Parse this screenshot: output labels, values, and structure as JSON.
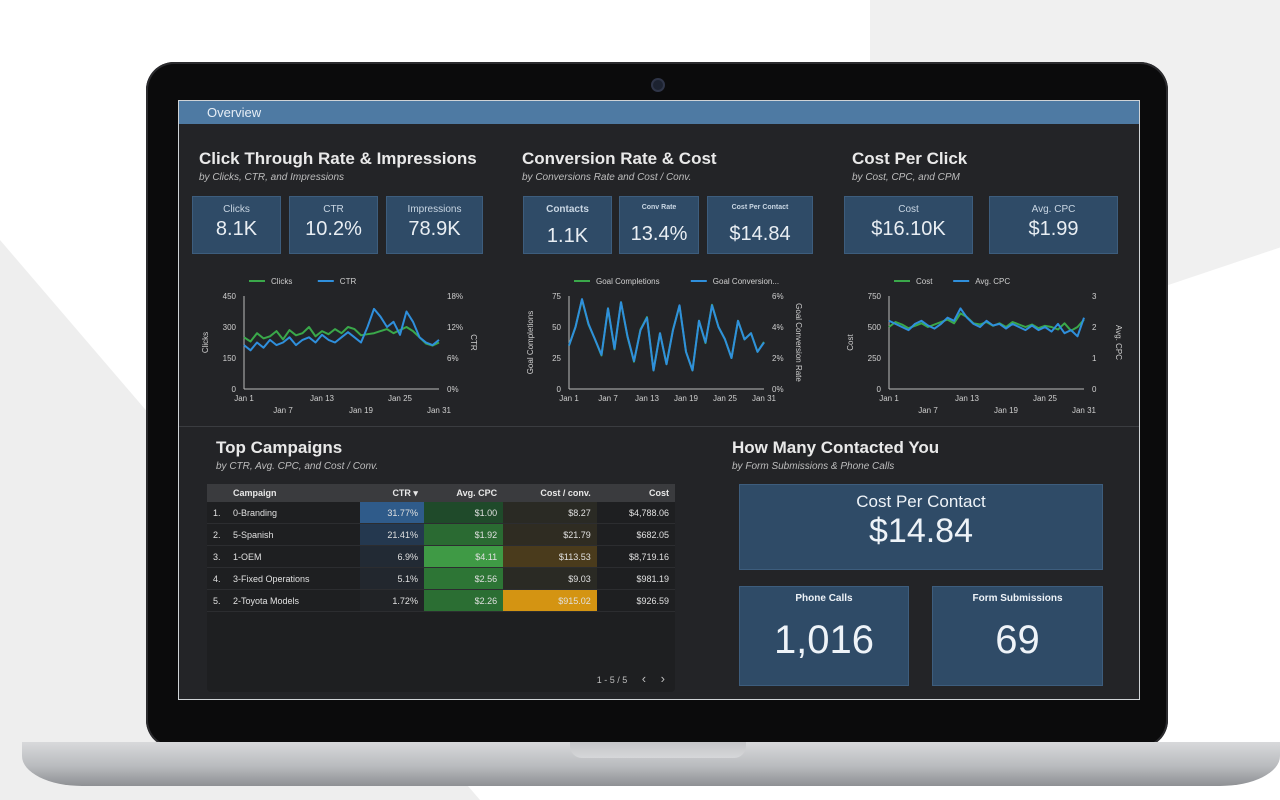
{
  "overview_title": "Overview",
  "sections": {
    "ctr": {
      "title": "Click Through Rate & Impressions",
      "subtitle": "by Clicks, CTR, and Impressions"
    },
    "conv": {
      "title": "Conversion Rate & Cost",
      "subtitle": "by Conversions Rate and Cost / Conv."
    },
    "cpc": {
      "title": "Cost Per Click",
      "subtitle": "by Cost, CPC, and CPM"
    },
    "top": {
      "title": "Top Campaigns",
      "subtitle": "by CTR, Avg. CPC, and Cost / Conv."
    },
    "contacted": {
      "title": "How Many Contacted You",
      "subtitle": "by Form Submissions & Phone Calls"
    }
  },
  "kpis": {
    "clicks": {
      "label": "Clicks",
      "value": "8.1K"
    },
    "ctr": {
      "label": "CTR",
      "value": "10.2%"
    },
    "impressions": {
      "label": "Impressions",
      "value": "78.9K"
    },
    "contacts": {
      "label": "Contacts",
      "value": "1.1K"
    },
    "conv_rate": {
      "label": "Conv Rate",
      "value": "13.4%"
    },
    "cost_per_contact": {
      "label": "Cost Per Contact",
      "value": "$14.84"
    },
    "cost": {
      "label": "Cost",
      "value": "$16.10K"
    },
    "avg_cpc": {
      "label": "Avg. CPC",
      "value": "$1.99"
    }
  },
  "chart_data": [
    {
      "type": "line",
      "legend": [
        "Clicks",
        "CTR"
      ],
      "colors": [
        "#3aa84a",
        "#2f8fdc"
      ],
      "x_ticks": [
        "Jan 1",
        "Jan 7",
        "Jan 13",
        "Jan 19",
        "Jan 25",
        "Jan 31"
      ],
      "ylabel": "Clicks",
      "y2label": "CTR",
      "y_ticks": [
        "450",
        "300",
        "150",
        "0"
      ],
      "ylim": [
        0,
        450
      ],
      "y2_ticks": [
        "18%",
        "12%",
        "6%",
        "0%"
      ],
      "y2lim": [
        0,
        18
      ],
      "series": [
        {
          "name": "Clicks",
          "values": [
            250,
            230,
            270,
            245,
            255,
            280,
            240,
            285,
            260,
            270,
            300,
            255,
            280,
            265,
            290,
            270,
            300,
            290,
            260,
            265,
            270,
            280,
            290,
            270,
            285,
            300,
            280,
            250,
            220,
            210,
            225
          ]
        },
        {
          "name": "CTR",
          "values": [
            8.5,
            7.5,
            9,
            8,
            9.5,
            8.5,
            9,
            10,
            8.5,
            9.5,
            10,
            9,
            10.5,
            9.5,
            9,
            10,
            11,
            10,
            9,
            12,
            15.5,
            14,
            12,
            13,
            10.5,
            15,
            13,
            10,
            9,
            8.5,
            9.5
          ]
        }
      ]
    },
    {
      "type": "line",
      "legend": [
        "Goal Completions",
        "Goal Conversion..."
      ],
      "colors": [
        "#3aa84a",
        "#2f8fdc"
      ],
      "x_ticks": [
        "Jan 1",
        "Jan 7",
        "Jan 13",
        "Jan 19",
        "Jan 25",
        "Jan 31"
      ],
      "ylabel": "Goal Completions",
      "y2label": "Goal Conversion Rate",
      "y_ticks": [
        "75",
        "50",
        "25",
        "0"
      ],
      "ylim": [
        0,
        75
      ],
      "y2_ticks": [
        "6%",
        "4%",
        "2%",
        "0%"
      ],
      "y2lim": [
        0,
        6
      ],
      "series": [
        {
          "name": "Goal Completions",
          "values": [
            35,
            50,
            72,
            52,
            40,
            27,
            65,
            32,
            70,
            42,
            22,
            48,
            58,
            15,
            45,
            20,
            48,
            67,
            30,
            15,
            55,
            37,
            68,
            50,
            40,
            25,
            55,
            40,
            45,
            30,
            38
          ]
        },
        {
          "name": "Goal Conversion...",
          "values": [
            2.8,
            4,
            5.8,
            4.2,
            3.2,
            2.2,
            5.2,
            2.6,
            5.6,
            3.4,
            1.8,
            3.8,
            4.6,
            1.2,
            3.6,
            1.6,
            3.8,
            5.4,
            2.4,
            1.2,
            4.4,
            3,
            5.4,
            4,
            3.2,
            2,
            4.4,
            3.2,
            3.6,
            2.4,
            3
          ]
        }
      ]
    },
    {
      "type": "line",
      "legend": [
        "Cost",
        "Avg. CPC"
      ],
      "colors": [
        "#3aa84a",
        "#2f8fdc"
      ],
      "x_ticks": [
        "Jan 1",
        "Jan 7",
        "Jan 13",
        "Jan 19",
        "Jan 25",
        "Jan 31"
      ],
      "ylabel": "Cost",
      "y2label": "Avg. CPC",
      "y_ticks": [
        "750",
        "500",
        "250",
        "0"
      ],
      "ylim": [
        0,
        750
      ],
      "y2_ticks": [
        "3",
        "2",
        "1",
        "0"
      ],
      "y2lim": [
        0,
        3
      ],
      "series": [
        {
          "name": "Cost",
          "values": [
            500,
            540,
            520,
            490,
            510,
            530,
            500,
            520,
            540,
            560,
            530,
            610,
            580,
            530,
            520,
            540,
            510,
            530,
            500,
            540,
            520,
            500,
            520,
            490,
            510,
            500,
            480,
            530,
            470,
            500,
            560
          ]
        },
        {
          "name": "Avg. CPC",
          "values": [
            2.2,
            2.1,
            2,
            1.9,
            2.1,
            2.2,
            2.05,
            1.95,
            2.1,
            2.3,
            2.2,
            2.6,
            2.3,
            2.1,
            2,
            2.2,
            2.05,
            2.1,
            1.95,
            2.1,
            2,
            1.9,
            2.05,
            1.9,
            2,
            1.85,
            2.1,
            1.8,
            1.9,
            1.7,
            2.3
          ]
        }
      ]
    }
  ],
  "campaigns": {
    "headers": [
      "Campaign",
      "CTR ▾",
      "Avg. CPC",
      "Cost / conv.",
      "Cost"
    ],
    "rows": [
      {
        "idx": "1.",
        "name": "0-Branding",
        "ctr": "31.77%",
        "cpc": "$1.00",
        "cost_conv": "$8.27",
        "cost": "$4,788.06",
        "ctr_bg": "#2f5b8a",
        "cpc_bg": "#1f4a2a",
        "cc_bg": "#2a2a24"
      },
      {
        "idx": "2.",
        "name": "5-Spanish",
        "ctr": "21.41%",
        "cpc": "$1.92",
        "cost_conv": "$21.79",
        "cost": "$682.05",
        "ctr_bg": "#24384f",
        "cpc_bg": "#2a6a32",
        "cc_bg": "#2f2c22"
      },
      {
        "idx": "3.",
        "name": "1-OEM",
        "ctr": "6.9%",
        "cpc": "$4.11",
        "cost_conv": "$113.53",
        "cost": "$8,719.16",
        "ctr_bg": "#222a34",
        "cpc_bg": "#3f9a45",
        "cc_bg": "#4a3b1c"
      },
      {
        "idx": "4.",
        "name": "3-Fixed Operations",
        "ctr": "5.1%",
        "cpc": "$2.56",
        "cost_conv": "$9.03",
        "cost": "$981.19",
        "ctr_bg": "#22272e",
        "cpc_bg": "#2d7535",
        "cc_bg": "#2a2a24"
      },
      {
        "idx": "5.",
        "name": "2-Toyota Models",
        "ctr": "1.72%",
        "cpc": "$2.26",
        "cost_conv": "$915.02",
        "cost": "$926.59",
        "ctr_bg": "#212326",
        "cpc_bg": "#2b6e33",
        "cc_bg": "#d49412"
      }
    ],
    "pager": "1 - 5 / 5",
    "prev": "‹",
    "next": "›"
  },
  "contacted": {
    "cpc_label": "Cost Per Contact",
    "cpc_value": "$14.84",
    "phone_label": "Phone Calls",
    "phone_value": "1,016",
    "form_label": "Form Submissions",
    "form_value": "69"
  }
}
